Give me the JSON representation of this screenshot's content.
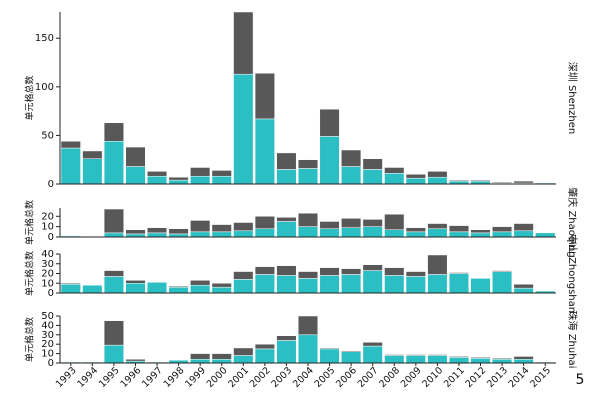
{
  "page_number": "5",
  "chart_data": [
    {
      "type": "bar",
      "stacked": true,
      "title": "深圳 Shenzhen",
      "ylabel": "单元格总数",
      "ylim": [
        0,
        177
      ],
      "yticks": [
        0,
        50,
        100,
        150
      ],
      "series": [
        {
          "color": "#2bbec3",
          "values": [
            37,
            26,
            44,
            18,
            8,
            4,
            8,
            8,
            113,
            67,
            15,
            16,
            49,
            18,
            15,
            11,
            6,
            7,
            3,
            3,
            1,
            1,
            1
          ]
        },
        {
          "color": "#585858",
          "values": [
            7,
            8,
            19,
            20,
            5,
            3,
            9,
            6,
            64,
            47,
            17,
            9,
            28,
            17,
            11,
            6,
            4,
            6,
            1,
            1,
            1,
            2,
            0
          ]
        }
      ]
    },
    {
      "type": "bar",
      "stacked": true,
      "title": "肇庆 Zhaoqing",
      "ylabel": "单元格总数",
      "ylim": [
        0,
        28
      ],
      "yticks": [
        0,
        10,
        20
      ],
      "series": [
        {
          "color": "#2bbec3",
          "values": [
            1,
            0,
            4,
            3,
            4,
            3,
            5,
            5,
            6,
            8,
            15,
            10,
            8,
            9,
            10,
            7,
            5,
            8,
            5,
            4,
            5,
            6,
            4
          ]
        },
        {
          "color": "#585858",
          "values": [
            0,
            0,
            23,
            4,
            5,
            5,
            11,
            7,
            8,
            12,
            4,
            13,
            7,
            9,
            7,
            15,
            4,
            5,
            6,
            3,
            5,
            7,
            0
          ]
        }
      ]
    },
    {
      "type": "bar",
      "stacked": true,
      "title": "中山 Zhongshan",
      "ylabel": "单元格总数",
      "ylim": [
        0,
        40
      ],
      "yticks": [
        0,
        10,
        20,
        30,
        40
      ],
      "series": [
        {
          "color": "#2bbec3",
          "values": [
            9,
            8,
            17,
            10,
            11,
            6,
            8,
            6,
            14,
            19,
            18,
            15,
            18,
            19,
            23,
            18,
            17,
            19,
            20,
            15,
            22,
            5,
            2
          ]
        },
        {
          "color": "#585858",
          "values": [
            1,
            0,
            6,
            3,
            0,
            1,
            5,
            4,
            8,
            8,
            10,
            7,
            8,
            6,
            6,
            8,
            5,
            20,
            1,
            0,
            1,
            4,
            0
          ]
        }
      ]
    },
    {
      "type": "bar",
      "stacked": true,
      "title": "珠海 Zhuhai",
      "ylabel": "单元格总数",
      "ylim": [
        0,
        50
      ],
      "yticks": [
        0,
        10,
        20,
        30,
        40,
        50
      ],
      "categories": [
        "1993",
        "1994",
        "1995",
        "1996",
        "1997",
        "1998",
        "1999",
        "2000",
        "2001",
        "2002",
        "2003",
        "2004",
        "2005",
        "2006",
        "2007",
        "2008",
        "2009",
        "2010",
        "2011",
        "2012",
        "2013",
        "2014",
        "2015"
      ],
      "series": [
        {
          "color": "#2bbec3",
          "values": [
            1,
            1,
            19,
            2,
            1,
            3,
            4,
            4,
            8,
            15,
            24,
            30,
            15,
            12,
            18,
            8,
            8,
            8,
            6,
            5,
            4,
            4,
            1
          ]
        },
        {
          "color": "#585858",
          "values": [
            0,
            0,
            26,
            2,
            0,
            0,
            6,
            6,
            8,
            5,
            5,
            20,
            1,
            1,
            4,
            1,
            1,
            1,
            1,
            1,
            1,
            3,
            0
          ]
        }
      ]
    }
  ]
}
